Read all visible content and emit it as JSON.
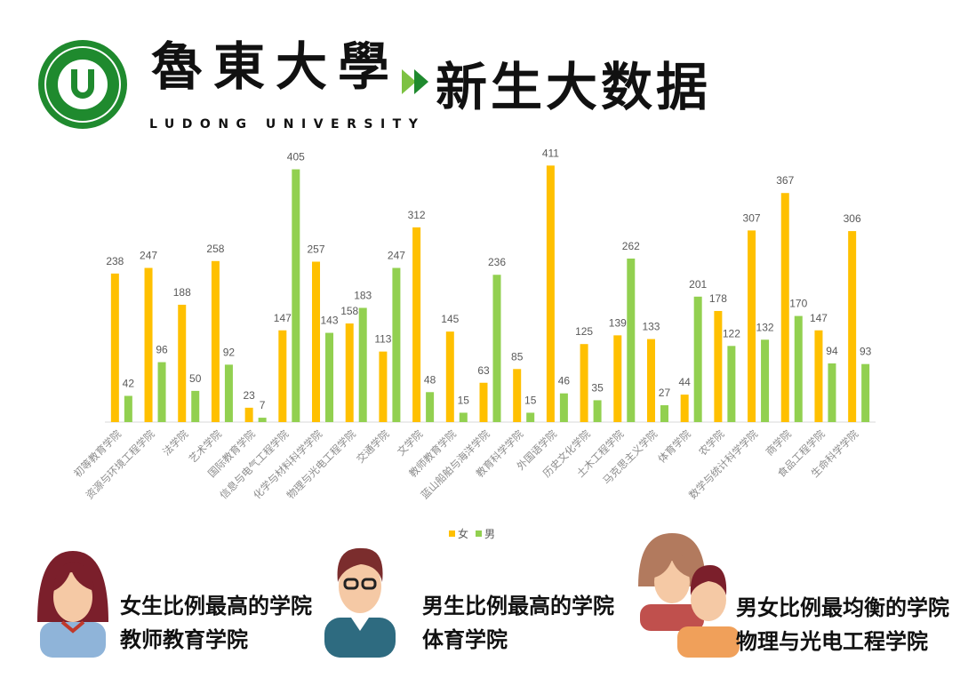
{
  "header": {
    "university_cn": "魯東大學",
    "university_en": "LUDONG UNIVERSITY",
    "title": "新生大数据"
  },
  "chart_data": {
    "type": "bar",
    "categories": [
      "初等教育学院",
      "资源与环境工程学院",
      "法学院",
      "艺术学院",
      "国际教育学院",
      "信息与电气工程学院",
      "化学与材料科学学院",
      "物理与光电工程学院",
      "交通学院",
      "文学院",
      "教师教育学院",
      "蓝山船舶与海洋学院",
      "教育科学学院",
      "外国语学院",
      "历史文化学院",
      "土木工程学院",
      "马克思主义学院",
      "体育学院",
      "农学院",
      "数学与统计科学学院",
      "商学院",
      "食品工程学院",
      "生命科学学院"
    ],
    "series": [
      {
        "name": "女",
        "color": "#ffc000",
        "values": [
          238,
          247,
          188,
          258,
          23,
          147,
          257,
          158,
          113,
          312,
          145,
          63,
          85,
          411,
          125,
          139,
          133,
          44,
          178,
          307,
          367,
          147,
          306
        ]
      },
      {
        "name": "男",
        "color": "#92d050",
        "values": [
          42,
          96,
          50,
          92,
          7,
          405,
          143,
          183,
          247,
          48,
          15,
          236,
          15,
          46,
          35,
          262,
          27,
          201,
          122,
          132,
          170,
          94,
          93
        ]
      }
    ],
    "ylim": [
      0,
      420
    ],
    "legend": "bottom"
  },
  "highlights": [
    {
      "title": "女生比例最高的学院",
      "college": "教师教育学院"
    },
    {
      "title": "男生比例最高的学院",
      "college": "体育学院"
    },
    {
      "title": "男女比例最均衡的学院",
      "college": "物理与光电工程学院"
    }
  ]
}
